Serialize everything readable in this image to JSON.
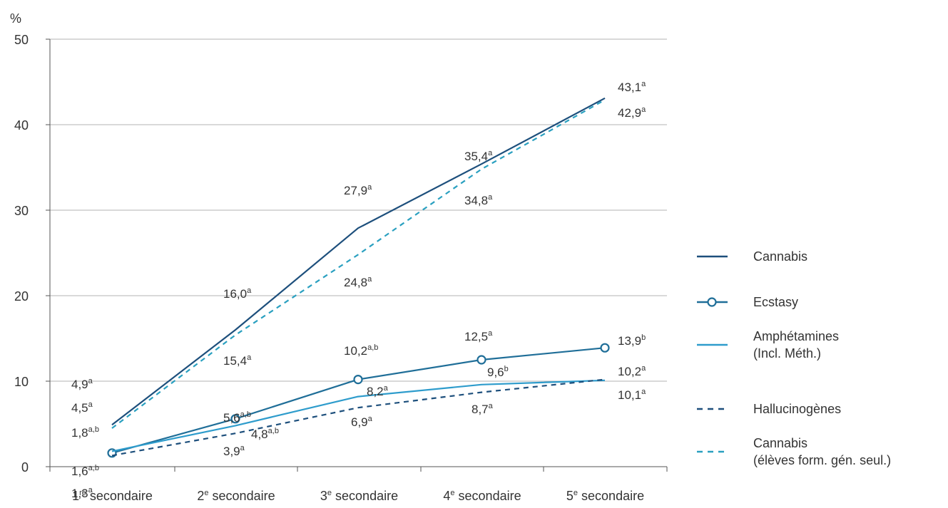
{
  "chart_data": {
    "type": "line",
    "ylabel": "%",
    "ylim": [
      0,
      50
    ],
    "yticks": [
      0,
      10,
      20,
      30,
      40,
      50
    ],
    "grid": true,
    "legend": "right",
    "categories": [
      {
        "main": "1",
        "sup": "re",
        "rest": " secondaire"
      },
      {
        "main": "2",
        "sup": "e",
        "rest": " secondaire"
      },
      {
        "main": "3",
        "sup": "e",
        "rest": " secondaire"
      },
      {
        "main": "4",
        "sup": "e",
        "rest": " secondaire"
      },
      {
        "main": "5",
        "sup": "e",
        "rest": " secondaire"
      }
    ],
    "series": [
      {
        "key": "cannabis",
        "name": [
          "Cannabis"
        ],
        "color": "#1d4f7c",
        "style": "solid",
        "marker": false,
        "values": [
          4.9,
          16.0,
          27.9,
          35.4,
          43.1
        ],
        "labels": [
          {
            "text": "4,9",
            "sup": "a"
          },
          {
            "text": "16,0",
            "sup": "a"
          },
          {
            "text": "27,9",
            "sup": "a"
          },
          {
            "text": "35,4",
            "sup": "a"
          },
          {
            "text": "43,1",
            "sup": "a"
          }
        ]
      },
      {
        "key": "ecstasy",
        "name": [
          "Ecstasy"
        ],
        "color": "#1f6e98",
        "style": "solid",
        "marker": true,
        "values": [
          1.6,
          5.6,
          10.2,
          12.5,
          13.9
        ],
        "labels": [
          {
            "text": "1,6",
            "sup": "a,b"
          },
          {
            "text": "5,6",
            "sup": "a,b"
          },
          {
            "text": "10,2",
            "sup": "a,b"
          },
          {
            "text": "12,5",
            "sup": "a"
          },
          {
            "text": "13,9",
            "sup": "b"
          }
        ]
      },
      {
        "key": "amphetamines",
        "name": [
          "Amphétamines",
          "(Incl. Méth.)"
        ],
        "color": "#2e9ccc",
        "style": "solid",
        "marker": false,
        "values": [
          1.8,
          4.8,
          8.2,
          9.6,
          10.1
        ],
        "labels": [
          {
            "text": "1,8",
            "sup": "a,b"
          },
          {
            "text": "4,8",
            "sup": "a,b"
          },
          {
            "text": "8,2",
            "sup": "a"
          },
          {
            "text": "9,6",
            "sup": "b"
          },
          {
            "text": "10,1",
            "sup": "a"
          }
        ]
      },
      {
        "key": "hallucinogenes",
        "name": [
          "Hallucinogènes"
        ],
        "color": "#1d4f7c",
        "style": "dashed",
        "marker": false,
        "values": [
          1.3,
          3.9,
          6.9,
          8.7,
          10.2
        ],
        "labels": [
          {
            "text": "1,3",
            "sup": "a"
          },
          {
            "text": "3,9",
            "sup": "a"
          },
          {
            "text": "6,9",
            "sup": "a"
          },
          {
            "text": "8,7",
            "sup": "a"
          },
          {
            "text": "10,2",
            "sup": "a"
          }
        ]
      },
      {
        "key": "cannabis_fg",
        "name": [
          "Cannabis",
          "(élèves form. gén. seul.)"
        ],
        "color": "#2aa0c0",
        "style": "dashed",
        "marker": false,
        "values": [
          4.5,
          15.4,
          24.8,
          34.8,
          42.9
        ],
        "labels": [
          {
            "text": "4,5",
            "sup": "a"
          },
          {
            "text": "15,4",
            "sup": "a"
          },
          {
            "text": "24,8",
            "sup": "a"
          },
          {
            "text": "34,8",
            "sup": "a"
          },
          {
            "text": "42,9",
            "sup": "a"
          }
        ]
      }
    ]
  }
}
